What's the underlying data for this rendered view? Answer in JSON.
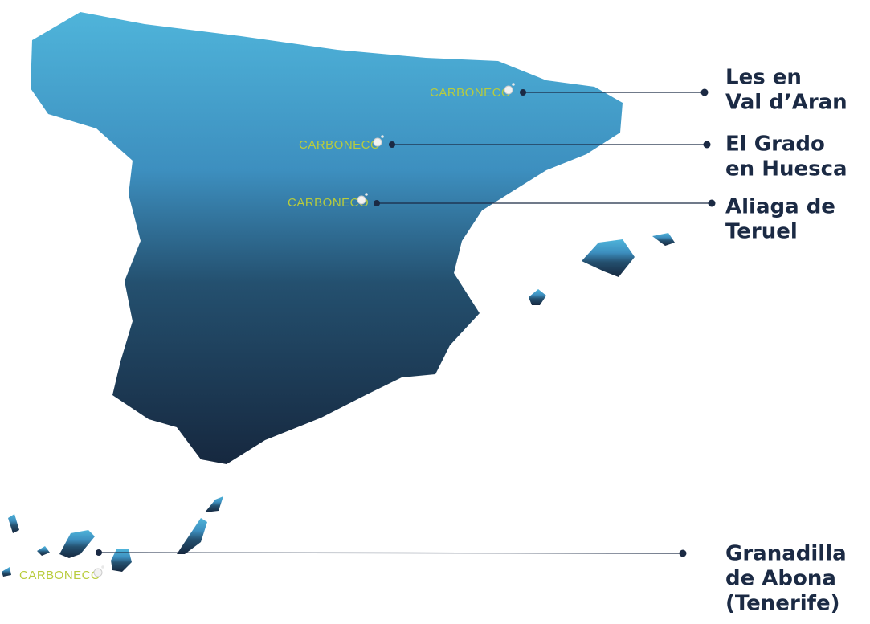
{
  "locations": [
    {
      "brand": "CARBONECO",
      "label_lines": [
        "Les en",
        "Val d’Aran"
      ]
    },
    {
      "brand": "CARBONECO",
      "label_lines": [
        "El Grado",
        "en Huesca"
      ]
    },
    {
      "brand": "CARBONECO",
      "label_lines": [
        "Aliaga de",
        "Teruel"
      ]
    },
    {
      "brand": "CARBONECO",
      "label_lines": [
        "Granadilla",
        "de Abona",
        "(Tenerife)"
      ]
    }
  ]
}
